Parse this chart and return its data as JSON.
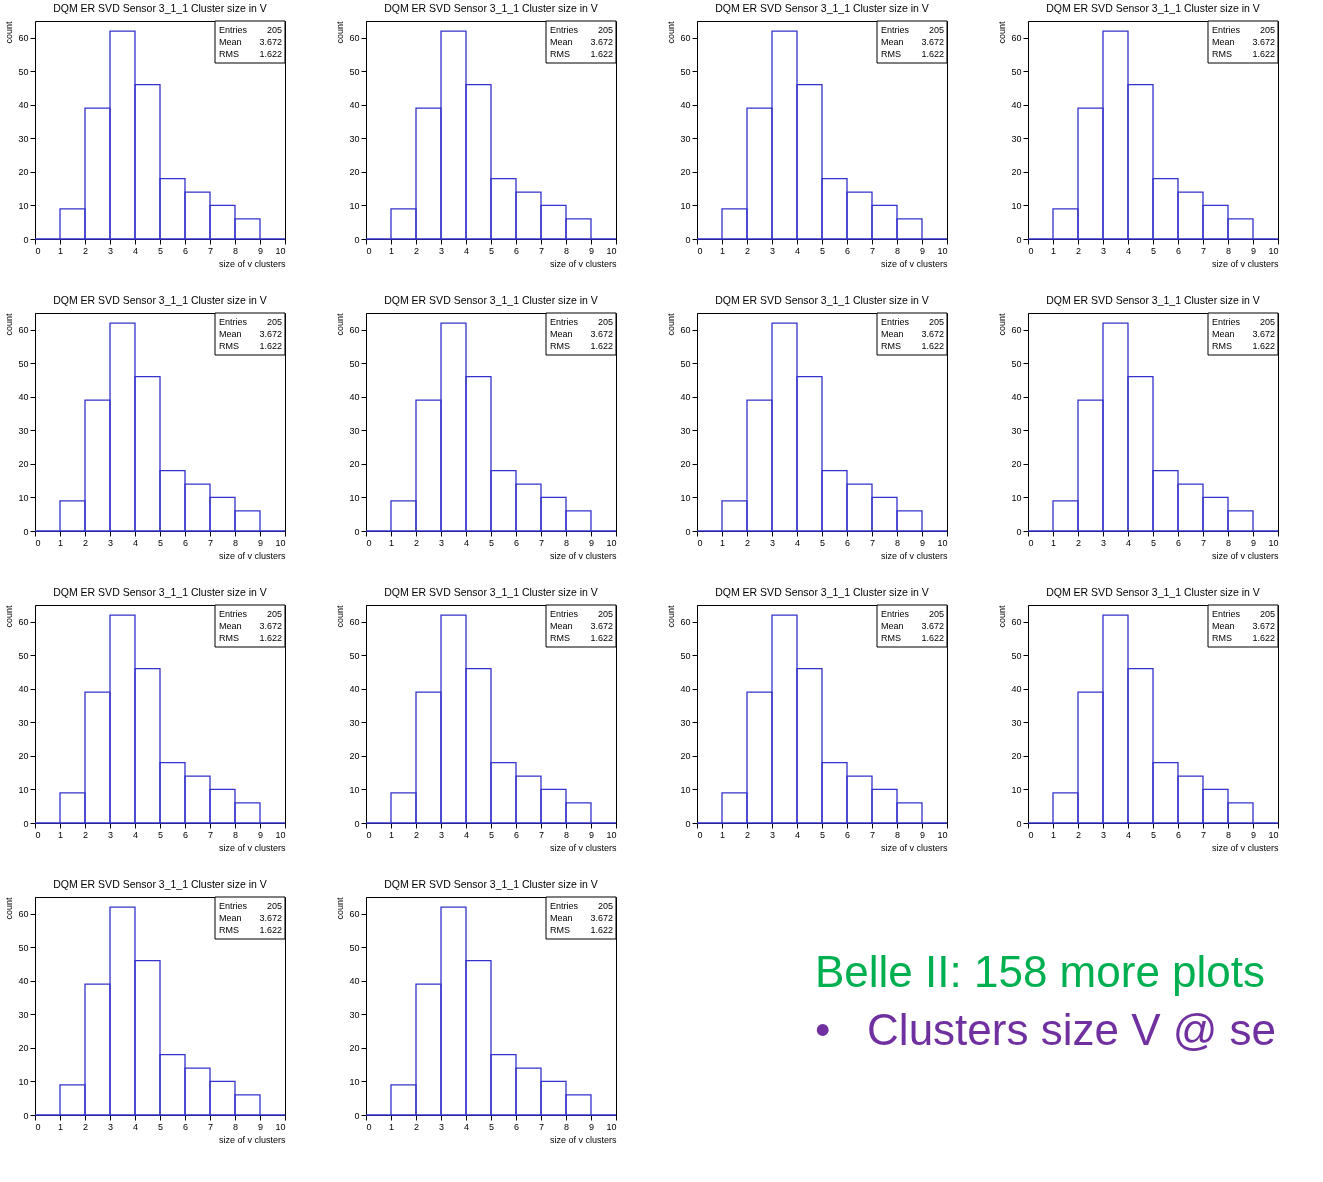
{
  "chart_data": [
    {
      "type": "histogram",
      "title": "DQM ER SVD Sensor 3_1_1 Cluster size in V",
      "xlabel": "size of v clusters",
      "ylabel": "count",
      "bins": [
        0,
        1,
        2,
        3,
        4,
        5,
        6,
        7,
        8,
        9,
        10
      ],
      "values": [
        0,
        9,
        39,
        62,
        46,
        18,
        14,
        10,
        6,
        0
      ],
      "color": "#3333cc",
      "xlim": [
        0,
        10
      ],
      "xticks": [
        0,
        1,
        2,
        3,
        4,
        5,
        6,
        7,
        8,
        9,
        10
      ],
      "ylim": [
        0,
        65
      ],
      "yticks": [
        0,
        10,
        20,
        30,
        40,
        50,
        60
      ],
      "annotations": [
        "Entries 205",
        "Mean 3.672",
        "RMS 1.622"
      ]
    },
    {
      "type": "histogram",
      "title": "DQM ER SVD Sensor 3_1_1 Cluster size in V",
      "xlabel": "size of v clusters",
      "ylabel": "count",
      "bins": [
        0,
        1,
        2,
        3,
        4,
        5,
        6,
        7,
        8,
        9,
        10
      ],
      "values": [
        0,
        9,
        39,
        62,
        46,
        18,
        14,
        10,
        6,
        0
      ],
      "color": "#3333cc",
      "xlim": [
        0,
        10
      ],
      "xticks": [
        0,
        1,
        2,
        3,
        4,
        5,
        6,
        7,
        8,
        9,
        10
      ],
      "ylim": [
        0,
        65
      ],
      "yticks": [
        0,
        10,
        20,
        30,
        40,
        50,
        60
      ],
      "annotations": [
        "Entries 205",
        "Mean 3.672",
        "RMS 1.622"
      ]
    },
    {
      "type": "histogram",
      "title": "DQM ER SVD Sensor 3_1_1 Cluster size in V",
      "xlabel": "size of v clusters",
      "ylabel": "count",
      "bins": [
        0,
        1,
        2,
        3,
        4,
        5,
        6,
        7,
        8,
        9,
        10
      ],
      "values": [
        0,
        9,
        39,
        62,
        46,
        18,
        14,
        10,
        6,
        0
      ],
      "color": "#3333cc",
      "xlim": [
        0,
        10
      ],
      "xticks": [
        0,
        1,
        2,
        3,
        4,
        5,
        6,
        7,
        8,
        9,
        10
      ],
      "ylim": [
        0,
        65
      ],
      "yticks": [
        0,
        10,
        20,
        30,
        40,
        50,
        60
      ],
      "annotations": [
        "Entries 205",
        "Mean 3.672",
        "RMS 1.622"
      ]
    },
    {
      "type": "histogram",
      "title": "DQM ER SVD Sensor 3_1_1 Cluster size in V",
      "xlabel": "size of v clusters",
      "ylabel": "count",
      "bins": [
        0,
        1,
        2,
        3,
        4,
        5,
        6,
        7,
        8,
        9,
        10
      ],
      "values": [
        0,
        9,
        39,
        62,
        46,
        18,
        14,
        10,
        6,
        0
      ],
      "color": "#3333cc",
      "xlim": [
        0,
        10
      ],
      "xticks": [
        0,
        1,
        2,
        3,
        4,
        5,
        6,
        7,
        8,
        9,
        10
      ],
      "ylim": [
        0,
        65
      ],
      "yticks": [
        0,
        10,
        20,
        30,
        40,
        50,
        60
      ],
      "annotations": [
        "Entries 205",
        "Mean 3.672",
        "RMS 1.622"
      ]
    },
    {
      "type": "histogram",
      "title": "DQM ER SVD Sensor 3_1_1 Cluster size in V",
      "xlabel": "size of v clusters",
      "ylabel": "count",
      "bins": [
        0,
        1,
        2,
        3,
        4,
        5,
        6,
        7,
        8,
        9,
        10
      ],
      "values": [
        0,
        9,
        39,
        62,
        46,
        18,
        14,
        10,
        6,
        0
      ],
      "color": "#3333cc",
      "xlim": [
        0,
        10
      ],
      "xticks": [
        0,
        1,
        2,
        3,
        4,
        5,
        6,
        7,
        8,
        9,
        10
      ],
      "ylim": [
        0,
        65
      ],
      "yticks": [
        0,
        10,
        20,
        30,
        40,
        50,
        60
      ],
      "annotations": [
        "Entries 205",
        "Mean 3.672",
        "RMS 1.622"
      ]
    },
    {
      "type": "histogram",
      "title": "DQM ER SVD Sensor 3_1_1 Cluster size in V",
      "xlabel": "size of v clusters",
      "ylabel": "count",
      "bins": [
        0,
        1,
        2,
        3,
        4,
        5,
        6,
        7,
        8,
        9,
        10
      ],
      "values": [
        0,
        9,
        39,
        62,
        46,
        18,
        14,
        10,
        6,
        0
      ],
      "color": "#3333cc",
      "xlim": [
        0,
        10
      ],
      "xticks": [
        0,
        1,
        2,
        3,
        4,
        5,
        6,
        7,
        8,
        9,
        10
      ],
      "ylim": [
        0,
        65
      ],
      "yticks": [
        0,
        10,
        20,
        30,
        40,
        50,
        60
      ],
      "annotations": [
        "Entries 205",
        "Mean 3.672",
        "RMS 1.622"
      ]
    },
    {
      "type": "histogram",
      "title": "DQM ER SVD Sensor 3_1_1 Cluster size in V",
      "xlabel": "size of v clusters",
      "ylabel": "count",
      "bins": [
        0,
        1,
        2,
        3,
        4,
        5,
        6,
        7,
        8,
        9,
        10
      ],
      "values": [
        0,
        9,
        39,
        62,
        46,
        18,
        14,
        10,
        6,
        0
      ],
      "color": "#3333cc",
      "xlim": [
        0,
        10
      ],
      "xticks": [
        0,
        1,
        2,
        3,
        4,
        5,
        6,
        7,
        8,
        9,
        10
      ],
      "ylim": [
        0,
        65
      ],
      "yticks": [
        0,
        10,
        20,
        30,
        40,
        50,
        60
      ],
      "annotations": [
        "Entries 205",
        "Mean 3.672",
        "RMS 1.622"
      ]
    },
    {
      "type": "histogram",
      "title": "DQM ER SVD Sensor 3_1_1 Cluster size in V",
      "xlabel": "size of v clusters",
      "ylabel": "count",
      "bins": [
        0,
        1,
        2,
        3,
        4,
        5,
        6,
        7,
        8,
        9,
        10
      ],
      "values": [
        0,
        9,
        39,
        62,
        46,
        18,
        14,
        10,
        6,
        0
      ],
      "color": "#3333cc",
      "xlim": [
        0,
        10
      ],
      "xticks": [
        0,
        1,
        2,
        3,
        4,
        5,
        6,
        7,
        8,
        9,
        10
      ],
      "ylim": [
        0,
        65
      ],
      "yticks": [
        0,
        10,
        20,
        30,
        40,
        50,
        60
      ],
      "annotations": [
        "Entries 205",
        "Mean 3.672",
        "RMS 1.622"
      ]
    },
    {
      "type": "histogram",
      "title": "DQM ER SVD Sensor 3_1_1 Cluster size in V",
      "xlabel": "size of v clusters",
      "ylabel": "count",
      "bins": [
        0,
        1,
        2,
        3,
        4,
        5,
        6,
        7,
        8,
        9,
        10
      ],
      "values": [
        0,
        9,
        39,
        62,
        46,
        18,
        14,
        10,
        6,
        0
      ],
      "color": "#3333cc",
      "xlim": [
        0,
        10
      ],
      "xticks": [
        0,
        1,
        2,
        3,
        4,
        5,
        6,
        7,
        8,
        9,
        10
      ],
      "ylim": [
        0,
        65
      ],
      "yticks": [
        0,
        10,
        20,
        30,
        40,
        50,
        60
      ],
      "annotations": [
        "Entries 205",
        "Mean 3.672",
        "RMS 1.622"
      ]
    },
    {
      "type": "histogram",
      "title": "DQM ER SVD Sensor 3_1_1 Cluster size in V",
      "xlabel": "size of v clusters",
      "ylabel": "count",
      "bins": [
        0,
        1,
        2,
        3,
        4,
        5,
        6,
        7,
        8,
        9,
        10
      ],
      "values": [
        0,
        9,
        39,
        62,
        46,
        18,
        14,
        10,
        6,
        0
      ],
      "color": "#3333cc",
      "xlim": [
        0,
        10
      ],
      "xticks": [
        0,
        1,
        2,
        3,
        4,
        5,
        6,
        7,
        8,
        9,
        10
      ],
      "ylim": [
        0,
        65
      ],
      "yticks": [
        0,
        10,
        20,
        30,
        40,
        50,
        60
      ],
      "annotations": [
        "Entries 205",
        "Mean 3.672",
        "RMS 1.622"
      ]
    },
    {
      "type": "histogram",
      "title": "DQM ER SVD Sensor 3_1_1 Cluster size in V",
      "xlabel": "size of v clusters",
      "ylabel": "count",
      "bins": [
        0,
        1,
        2,
        3,
        4,
        5,
        6,
        7,
        8,
        9,
        10
      ],
      "values": [
        0,
        9,
        39,
        62,
        46,
        18,
        14,
        10,
        6,
        0
      ],
      "color": "#3333cc",
      "xlim": [
        0,
        10
      ],
      "xticks": [
        0,
        1,
        2,
        3,
        4,
        5,
        6,
        7,
        8,
        9,
        10
      ],
      "ylim": [
        0,
        65
      ],
      "yticks": [
        0,
        10,
        20,
        30,
        40,
        50,
        60
      ],
      "annotations": [
        "Entries 205",
        "Mean 3.672",
        "RMS 1.622"
      ]
    },
    {
      "type": "histogram",
      "title": "DQM ER SVD Sensor 3_1_1 Cluster size in V",
      "xlabel": "size of v clusters",
      "ylabel": "count",
      "bins": [
        0,
        1,
        2,
        3,
        4,
        5,
        6,
        7,
        8,
        9,
        10
      ],
      "values": [
        0,
        9,
        39,
        62,
        46,
        18,
        14,
        10,
        6,
        0
      ],
      "color": "#3333cc",
      "xlim": [
        0,
        10
      ],
      "xticks": [
        0,
        1,
        2,
        3,
        4,
        5,
        6,
        7,
        8,
        9,
        10
      ],
      "ylim": [
        0,
        65
      ],
      "yticks": [
        0,
        10,
        20,
        30,
        40,
        50,
        60
      ],
      "annotations": [
        "Entries 205",
        "Mean 3.672",
        "RMS 1.622"
      ]
    },
    {
      "type": "histogram",
      "title": "DQM ER SVD Sensor 3_1_1 Cluster size in V",
      "xlabel": "size of v clusters",
      "ylabel": "count",
      "bins": [
        0,
        1,
        2,
        3,
        4,
        5,
        6,
        7,
        8,
        9,
        10
      ],
      "values": [
        0,
        9,
        39,
        62,
        46,
        18,
        14,
        10,
        6,
        0
      ],
      "color": "#3333cc",
      "xlim": [
        0,
        10
      ],
      "xticks": [
        0,
        1,
        2,
        3,
        4,
        5,
        6,
        7,
        8,
        9,
        10
      ],
      "ylim": [
        0,
        65
      ],
      "yticks": [
        0,
        10,
        20,
        30,
        40,
        50,
        60
      ],
      "annotations": [
        "Entries 205",
        "Mean 3.672",
        "RMS 1.622"
      ]
    },
    {
      "type": "histogram",
      "title": "DQM ER SVD Sensor 3_1_1 Cluster size in V",
      "xlabel": "size of v clusters",
      "ylabel": "count",
      "bins": [
        0,
        1,
        2,
        3,
        4,
        5,
        6,
        7,
        8,
        9,
        10
      ],
      "values": [
        0,
        9,
        39,
        62,
        46,
        18,
        14,
        10,
        6,
        0
      ],
      "color": "#3333cc",
      "xlim": [
        0,
        10
      ],
      "xticks": [
        0,
        1,
        2,
        3,
        4,
        5,
        6,
        7,
        8,
        9,
        10
      ],
      "ylim": [
        0,
        65
      ],
      "yticks": [
        0,
        10,
        20,
        30,
        40,
        50,
        60
      ],
      "annotations": [
        "Entries 205",
        "Mean 3.672",
        "RMS 1.622"
      ]
    },
    {
      "type": "other",
      "title": "Belle II: 158 more plots",
      "annotations": [
        "•   Clusters size V @ se"
      ]
    }
  ]
}
